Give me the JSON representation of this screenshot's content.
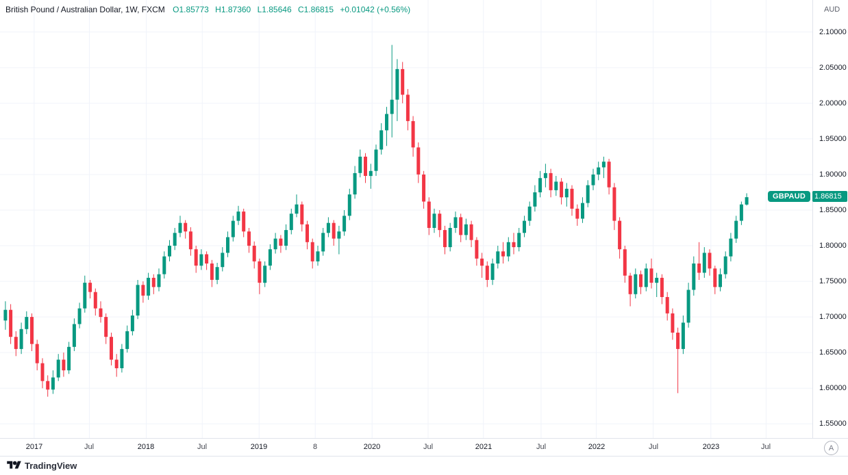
{
  "legend": {
    "title": "British Pound / Australian Dollar, 1W, FXCM",
    "open": "O1.85773",
    "high": "H1.87360",
    "low": "L1.85646",
    "close": "C1.86815",
    "change": "+0.01042 (+0.56%)"
  },
  "price_scale": {
    "currency": "AUD",
    "symbol_badge": "GBPAUD",
    "last_price": "1.86815"
  },
  "footer": {
    "brand": "TradingView",
    "corner_button": "A"
  },
  "colors": {
    "up": "#089981",
    "down": "#f23645",
    "grid": "#f0f3fa",
    "border": "#e0e3eb",
    "text": "#131722",
    "muted": "#787b86"
  },
  "chart_data": {
    "type": "candlestick",
    "title": "British Pound / Australian Dollar",
    "symbol": "GBPAUD",
    "timeframe": "1W",
    "exchange": "FXCM",
    "legend_position": "top-left",
    "grid": true,
    "up_color": "#089981",
    "down_color": "#f23645",
    "grid_color": "#f0f3fa",
    "last": {
      "open": 1.85773,
      "high": 1.8736,
      "low": 1.85646,
      "close": 1.86815,
      "change_abs": 0.01042,
      "change_pct": 0.56
    },
    "y_axis": {
      "min": 1.53,
      "max": 2.145,
      "ticks": [
        1.55,
        1.6,
        1.65,
        1.7,
        1.75,
        1.8,
        1.85,
        1.9,
        1.95,
        2.0,
        2.05,
        2.1
      ],
      "decimals": 5,
      "position": "right",
      "currency": "AUD"
    },
    "x_axis": {
      "labels": [
        {
          "text": "2017",
          "pos": 0.042,
          "year": true
        },
        {
          "text": "Jul",
          "pos": 0.11,
          "year": false
        },
        {
          "text": "2018",
          "pos": 0.18,
          "year": true
        },
        {
          "text": "Jul",
          "pos": 0.249,
          "year": false
        },
        {
          "text": "2019",
          "pos": 0.319,
          "year": true
        },
        {
          "text": "8",
          "pos": 0.388,
          "year": false
        },
        {
          "text": "2020",
          "pos": 0.458,
          "year": true
        },
        {
          "text": "Jul",
          "pos": 0.527,
          "year": false
        },
        {
          "text": "2021",
          "pos": 0.595,
          "year": true
        },
        {
          "text": "Jul",
          "pos": 0.666,
          "year": false
        },
        {
          "text": "2022",
          "pos": 0.734,
          "year": true
        },
        {
          "text": "Jul",
          "pos": 0.804,
          "year": false
        },
        {
          "text": "2023",
          "pos": 0.875,
          "year": true
        },
        {
          "text": "Jul",
          "pos": 0.943,
          "year": false
        }
      ]
    },
    "candles": [
      [
        1.695,
        1.722,
        1.682,
        1.71
      ],
      [
        1.71,
        1.718,
        1.662,
        1.672
      ],
      [
        1.672,
        1.68,
        1.645,
        1.655
      ],
      [
        1.655,
        1.692,
        1.648,
        1.683
      ],
      [
        1.683,
        1.708,
        1.676,
        1.7
      ],
      [
        1.7,
        1.705,
        1.652,
        1.662
      ],
      [
        1.662,
        1.668,
        1.625,
        1.635
      ],
      [
        1.635,
        1.642,
        1.6,
        1.61
      ],
      [
        1.61,
        1.618,
        1.588,
        1.598
      ],
      [
        1.598,
        1.625,
        1.592,
        1.615
      ],
      [
        1.615,
        1.648,
        1.61,
        1.64
      ],
      [
        1.64,
        1.65,
        1.616,
        1.625
      ],
      [
        1.625,
        1.665,
        1.62,
        1.658
      ],
      [
        1.658,
        1.698,
        1.652,
        1.69
      ],
      [
        1.69,
        1.72,
        1.684,
        1.712
      ],
      [
        1.712,
        1.758,
        1.706,
        1.748
      ],
      [
        1.748,
        1.752,
        1.726,
        1.735
      ],
      [
        1.735,
        1.74,
        1.702,
        1.712
      ],
      [
        1.712,
        1.722,
        1.692,
        1.7
      ],
      [
        1.7,
        1.705,
        1.662,
        1.672
      ],
      [
        1.672,
        1.678,
        1.632,
        1.64
      ],
      [
        1.64,
        1.648,
        1.616,
        1.628
      ],
      [
        1.628,
        1.662,
        1.622,
        1.655
      ],
      [
        1.655,
        1.688,
        1.65,
        1.68
      ],
      [
        1.68,
        1.71,
        1.674,
        1.702
      ],
      [
        1.702,
        1.752,
        1.697,
        1.745
      ],
      [
        1.745,
        1.75,
        1.72,
        1.73
      ],
      [
        1.73,
        1.762,
        1.724,
        1.755
      ],
      [
        1.755,
        1.76,
        1.732,
        1.742
      ],
      [
        1.742,
        1.768,
        1.736,
        1.76
      ],
      [
        1.76,
        1.792,
        1.754,
        1.785
      ],
      [
        1.785,
        1.808,
        1.778,
        1.8
      ],
      [
        1.8,
        1.825,
        1.794,
        1.818
      ],
      [
        1.818,
        1.842,
        1.812,
        1.832
      ],
      [
        1.832,
        1.836,
        1.81,
        1.82
      ],
      [
        1.82,
        1.826,
        1.786,
        1.795
      ],
      [
        1.795,
        1.8,
        1.762,
        1.772
      ],
      [
        1.772,
        1.795,
        1.766,
        1.788
      ],
      [
        1.788,
        1.792,
        1.766,
        1.775
      ],
      [
        1.775,
        1.78,
        1.742,
        1.752
      ],
      [
        1.752,
        1.776,
        1.746,
        1.77
      ],
      [
        1.77,
        1.798,
        1.764,
        1.79
      ],
      [
        1.79,
        1.82,
        1.784,
        1.812
      ],
      [
        1.812,
        1.842,
        1.806,
        1.835
      ],
      [
        1.835,
        1.856,
        1.829,
        1.848
      ],
      [
        1.848,
        1.852,
        1.812,
        1.82
      ],
      [
        1.82,
        1.825,
        1.79,
        1.8
      ],
      [
        1.8,
        1.806,
        1.768,
        1.778
      ],
      [
        1.778,
        1.782,
        1.732,
        1.748
      ],
      [
        1.748,
        1.778,
        1.742,
        1.772
      ],
      [
        1.772,
        1.802,
        1.766,
        1.795
      ],
      [
        1.795,
        1.818,
        1.789,
        1.81
      ],
      [
        1.81,
        1.815,
        1.79,
        1.8
      ],
      [
        1.8,
        1.83,
        1.794,
        1.822
      ],
      [
        1.822,
        1.852,
        1.816,
        1.845
      ],
      [
        1.845,
        1.872,
        1.84,
        1.858
      ],
      [
        1.858,
        1.862,
        1.82,
        1.83
      ],
      [
        1.83,
        1.835,
        1.795,
        1.805
      ],
      [
        1.805,
        1.81,
        1.768,
        1.778
      ],
      [
        1.778,
        1.8,
        1.772,
        1.792
      ],
      [
        1.792,
        1.825,
        1.786,
        1.818
      ],
      [
        1.818,
        1.84,
        1.812,
        1.832
      ],
      [
        1.832,
        1.836,
        1.8,
        1.81
      ],
      [
        1.81,
        1.828,
        1.788,
        1.82
      ],
      [
        1.82,
        1.85,
        1.814,
        1.842
      ],
      [
        1.842,
        1.88,
        1.836,
        1.872
      ],
      [
        1.872,
        1.912,
        1.866,
        1.902
      ],
      [
        1.902,
        1.935,
        1.896,
        1.925
      ],
      [
        1.925,
        1.93,
        1.888,
        1.898
      ],
      [
        1.898,
        1.915,
        1.88,
        1.905
      ],
      [
        1.905,
        1.942,
        1.898,
        1.935
      ],
      [
        1.935,
        1.972,
        1.928,
        1.962
      ],
      [
        1.962,
        1.995,
        1.94,
        1.985
      ],
      [
        1.985,
        2.082,
        1.952,
        2.005
      ],
      [
        2.005,
        2.062,
        1.975,
        2.048
      ],
      [
        2.048,
        2.058,
        2.0,
        2.012
      ],
      [
        2.012,
        2.02,
        1.962,
        1.975
      ],
      [
        1.975,
        1.982,
        1.925,
        1.938
      ],
      [
        1.938,
        1.945,
        1.888,
        1.9
      ],
      [
        1.9,
        1.905,
        1.852,
        1.862
      ],
      [
        1.862,
        1.868,
        1.815,
        1.825
      ],
      [
        1.825,
        1.852,
        1.818,
        1.845
      ],
      [
        1.845,
        1.85,
        1.812,
        1.822
      ],
      [
        1.822,
        1.828,
        1.788,
        1.798
      ],
      [
        1.798,
        1.832,
        1.792,
        1.825
      ],
      [
        1.825,
        1.848,
        1.818,
        1.84
      ],
      [
        1.84,
        1.845,
        1.805,
        1.815
      ],
      [
        1.815,
        1.838,
        1.808,
        1.83
      ],
      [
        1.83,
        1.835,
        1.798,
        1.808
      ],
      [
        1.808,
        1.812,
        1.772,
        1.782
      ],
      [
        1.782,
        1.79,
        1.755,
        1.772
      ],
      [
        1.772,
        1.778,
        1.742,
        1.752
      ],
      [
        1.752,
        1.782,
        1.745,
        1.775
      ],
      [
        1.775,
        1.8,
        1.768,
        1.792
      ],
      [
        1.792,
        1.805,
        1.775,
        1.785
      ],
      [
        1.785,
        1.812,
        1.778,
        1.805
      ],
      [
        1.805,
        1.818,
        1.788,
        1.798
      ],
      [
        1.798,
        1.825,
        1.792,
        1.818
      ],
      [
        1.818,
        1.842,
        1.812,
        1.835
      ],
      [
        1.835,
        1.862,
        1.828,
        1.855
      ],
      [
        1.855,
        1.885,
        1.848,
        1.875
      ],
      [
        1.875,
        1.905,
        1.868,
        1.895
      ],
      [
        1.895,
        1.915,
        1.882,
        1.902
      ],
      [
        1.902,
        1.908,
        1.868,
        1.878
      ],
      [
        1.878,
        1.898,
        1.87,
        1.89
      ],
      [
        1.89,
        1.895,
        1.858,
        1.868
      ],
      [
        1.868,
        1.888,
        1.855,
        1.88
      ],
      [
        1.88,
        1.885,
        1.842,
        1.852
      ],
      [
        1.852,
        1.858,
        1.828,
        1.838
      ],
      [
        1.838,
        1.868,
        1.832,
        1.86
      ],
      [
        1.86,
        1.892,
        1.854,
        1.885
      ],
      [
        1.885,
        1.908,
        1.878,
        1.9
      ],
      [
        1.9,
        1.918,
        1.892,
        1.91
      ],
      [
        1.91,
        1.925,
        1.895,
        1.918
      ],
      [
        1.918,
        1.922,
        1.872,
        1.882
      ],
      [
        1.882,
        1.888,
        1.822,
        1.835
      ],
      [
        1.835,
        1.84,
        1.782,
        1.795
      ],
      [
        1.795,
        1.8,
        1.748,
        1.758
      ],
      [
        1.758,
        1.762,
        1.715,
        1.732
      ],
      [
        1.732,
        1.768,
        1.726,
        1.76
      ],
      [
        1.76,
        1.765,
        1.732,
        1.742
      ],
      [
        1.742,
        1.775,
        1.736,
        1.768
      ],
      [
        1.768,
        1.782,
        1.74,
        1.748
      ],
      [
        1.748,
        1.762,
        1.728,
        1.755
      ],
      [
        1.755,
        1.76,
        1.718,
        1.728
      ],
      [
        1.728,
        1.735,
        1.695,
        1.705
      ],
      [
        1.705,
        1.712,
        1.668,
        1.678
      ],
      [
        1.678,
        1.685,
        1.593,
        1.655
      ],
      [
        1.655,
        1.702,
        1.648,
        1.692
      ],
      [
        1.692,
        1.748,
        1.685,
        1.738
      ],
      [
        1.738,
        1.785,
        1.73,
        1.775
      ],
      [
        1.775,
        1.805,
        1.752,
        1.762
      ],
      [
        1.762,
        1.798,
        1.755,
        1.79
      ],
      [
        1.79,
        1.795,
        1.758,
        1.768
      ],
      [
        1.768,
        1.772,
        1.732,
        1.742
      ],
      [
        1.742,
        1.768,
        1.736,
        1.76
      ],
      [
        1.76,
        1.792,
        1.754,
        1.785
      ],
      [
        1.785,
        1.818,
        1.778,
        1.81
      ],
      [
        1.81,
        1.842,
        1.804,
        1.835
      ],
      [
        1.835,
        1.862,
        1.829,
        1.858
      ],
      [
        1.85773,
        1.8736,
        1.85646,
        1.86815
      ]
    ]
  }
}
